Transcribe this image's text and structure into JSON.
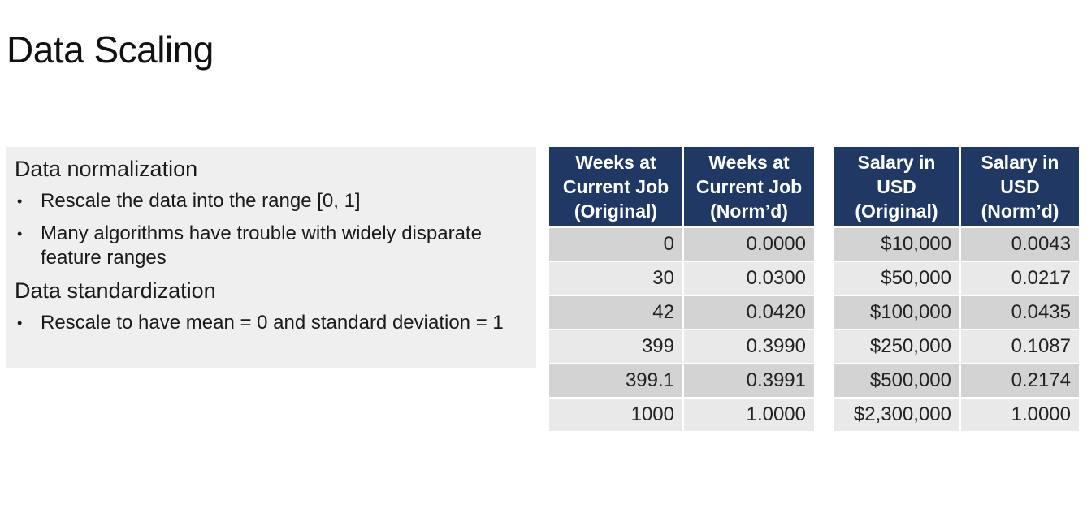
{
  "title": "Data Scaling",
  "textbox": {
    "normalization_heading": "Data normalization",
    "normalization_bullets": [
      "Rescale the data into the range [0, 1]",
      "Many algorithms have trouble with widely disparate feature ranges"
    ],
    "standardization_heading": "Data standardization",
    "standardization_bullets": [
      "Rescale to have mean = 0 and standard deviation = 1"
    ],
    "bullet_glyph": "•"
  },
  "weeks_table": {
    "headers": [
      "Weeks at Current Job (Original)",
      "Weeks at Current Job (Norm’d)"
    ],
    "rows": [
      [
        "0",
        "0.0000"
      ],
      [
        "30",
        "0.0300"
      ],
      [
        "42",
        "0.0420"
      ],
      [
        "399",
        "0.3990"
      ],
      [
        "399.1",
        "0.3991"
      ],
      [
        "1000",
        "1.0000"
      ]
    ]
  },
  "salary_table": {
    "headers": [
      "Salary in USD (Original)",
      "Salary in USD (Norm’d)"
    ],
    "rows": [
      [
        "$10,000",
        "0.0043"
      ],
      [
        "$50,000",
        "0.0217"
      ],
      [
        "$100,000",
        "0.0435"
      ],
      [
        "$250,000",
        "0.1087"
      ],
      [
        "$500,000",
        "0.2174"
      ],
      [
        "$2,300,000",
        "1.0000"
      ]
    ]
  },
  "colors": {
    "header_bg": "#203864",
    "row_dark": "#d3d3d3",
    "row_light": "#e9e9e9",
    "textbox_bg": "#efefef"
  }
}
